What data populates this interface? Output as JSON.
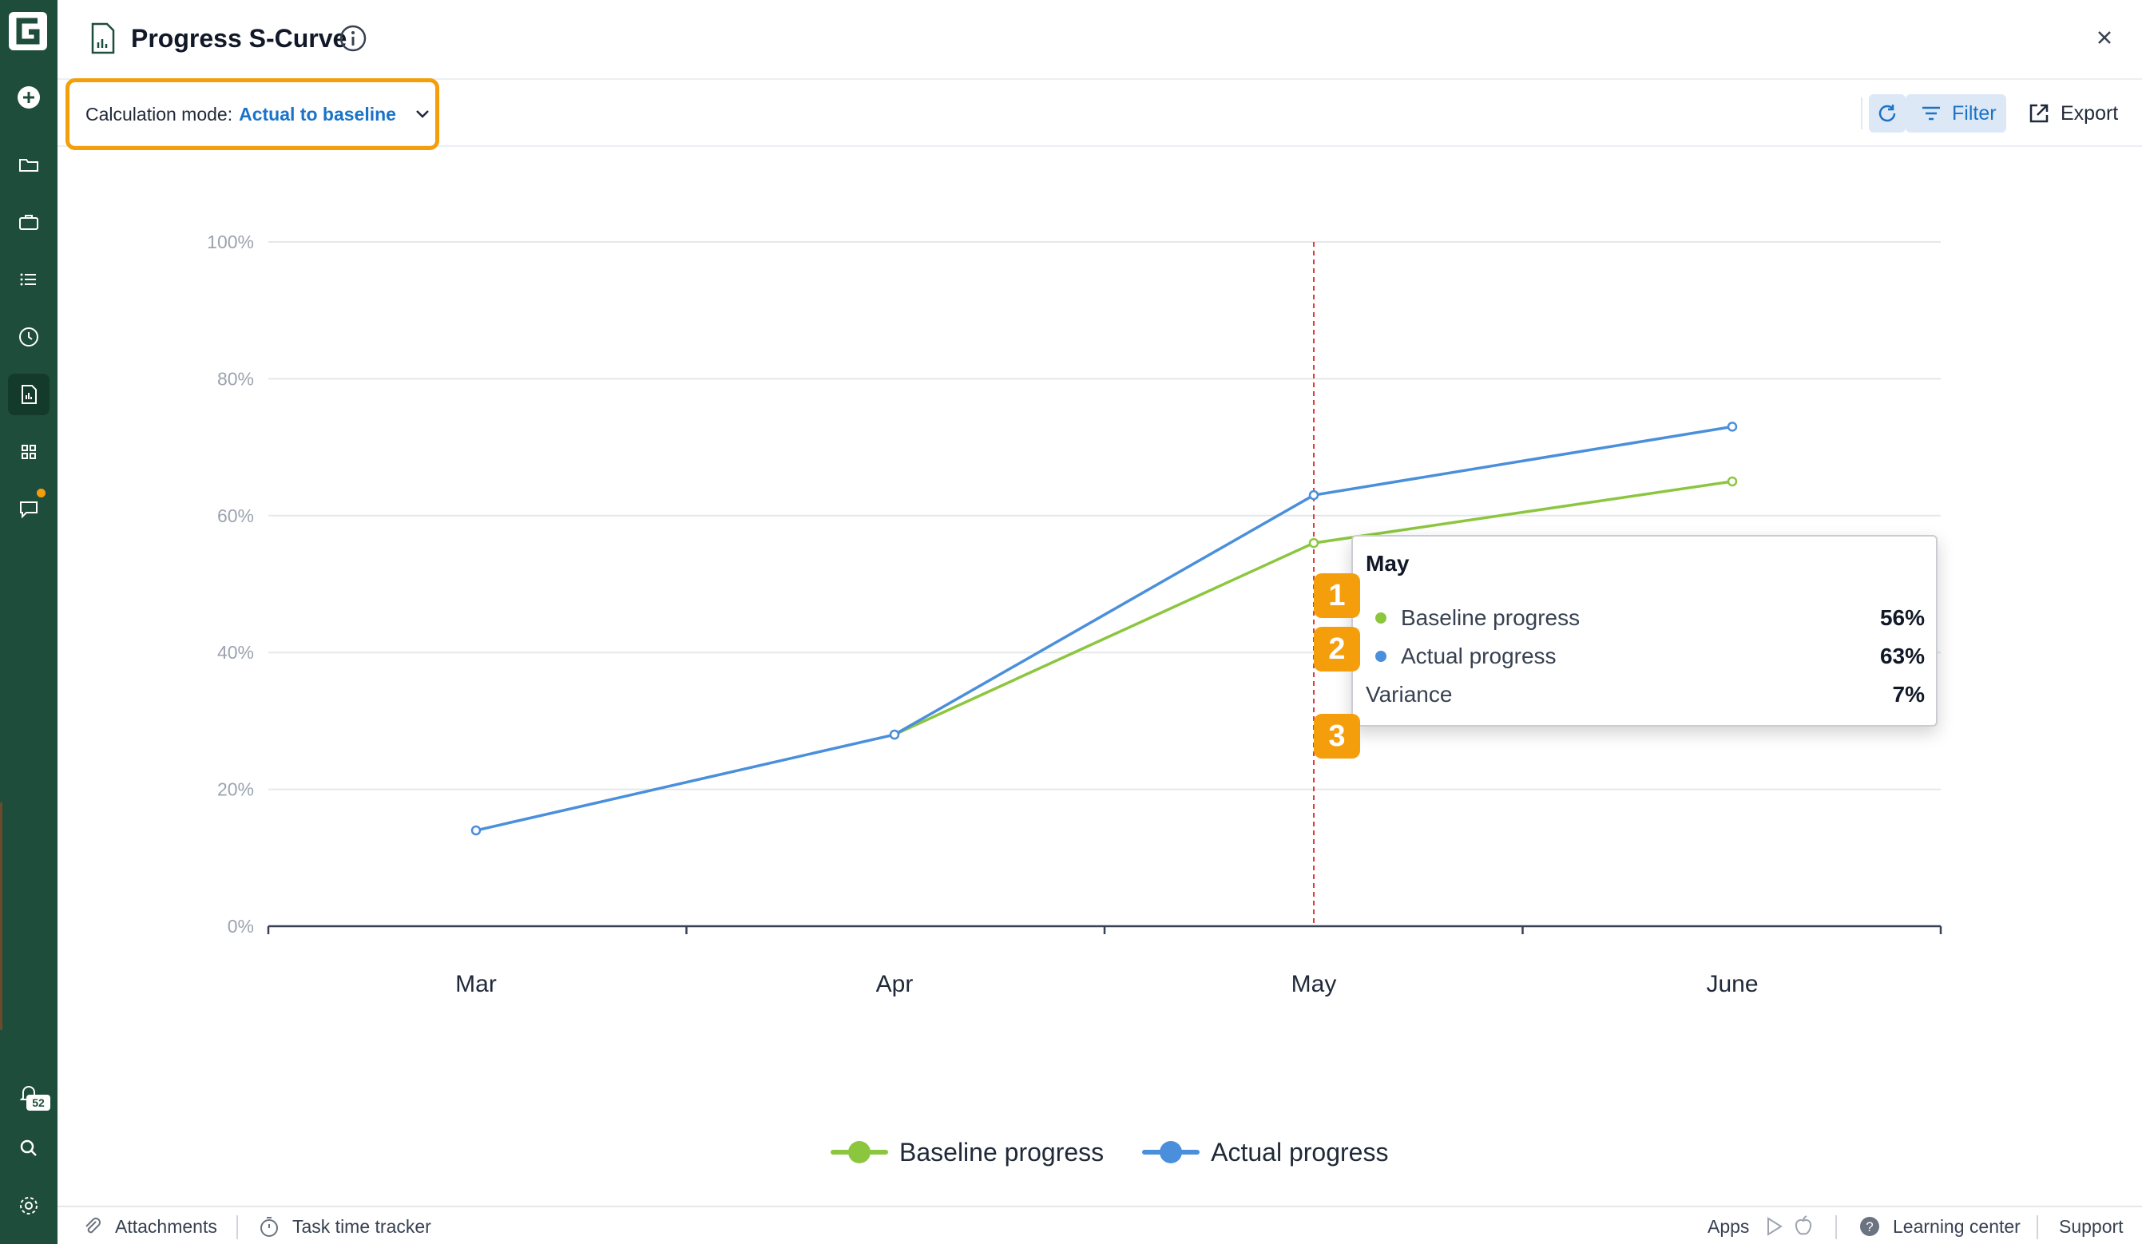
{
  "header": {
    "title": "Progress S-Curve"
  },
  "toolbar": {
    "calc_mode_label": "Calculation mode:",
    "calc_mode_value": "Actual to baseline",
    "filter_label": "Filter",
    "export_label": "Export"
  },
  "rail": {
    "notification_count": "52"
  },
  "chart_data": {
    "type": "line",
    "categories": [
      "Mar",
      "Apr",
      "May",
      "June"
    ],
    "series": [
      {
        "name": "Baseline progress",
        "color": "#8cc63f",
        "values": [
          null,
          28,
          56,
          65
        ]
      },
      {
        "name": "Actual progress",
        "color": "#4a8fdb",
        "values": [
          14,
          28,
          63,
          73
        ]
      }
    ],
    "y_ticks": [
      "0%",
      "20%",
      "40%",
      "60%",
      "80%",
      "100%"
    ],
    "ylim": [
      0,
      100
    ],
    "grid": true,
    "legend_position": "bottom-center",
    "highlight_category": "May",
    "highlight_line_color": "#e53935"
  },
  "tooltip": {
    "title": "May",
    "rows": [
      {
        "label": "Baseline progress",
        "value": "56%",
        "color": "#8cc63f"
      },
      {
        "label": "Actual progress",
        "value": "63%",
        "color": "#4a8fdb"
      }
    ],
    "variance_label": "Variance",
    "variance_value": "7%"
  },
  "markers": [
    "1",
    "2",
    "3"
  ],
  "legend": {
    "baseline": "Baseline progress",
    "actual": "Actual progress"
  },
  "footer": {
    "attachments": "Attachments",
    "task_time_tracker": "Task time tracker",
    "apps": "Apps",
    "learning_center": "Learning center",
    "support": "Support"
  }
}
